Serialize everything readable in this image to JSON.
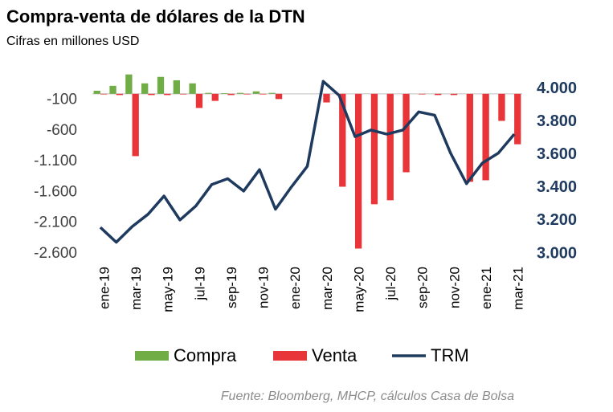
{
  "chart_data": {
    "type": "bar_line",
    "title": "Compra-venta de dólares de la DTN",
    "subtitle": "Cifras en millones USD",
    "source": "Fuente: Bloomberg, MHCP, cálculos Casa de Bolsa",
    "categories": [
      "ene-19",
      null,
      "mar-19",
      null,
      "may-19",
      null,
      "jul-19",
      null,
      "sep-19",
      null,
      "nov-19",
      null,
      "ene-20",
      null,
      "mar-20",
      null,
      "may-20",
      null,
      "jul-20",
      null,
      "sep-20",
      null,
      "nov-20",
      null,
      "ene-21",
      null,
      "mar-21"
    ],
    "series": [
      {
        "name": "Compra",
        "type": "bar",
        "color": "#70ad47",
        "values": [
          50,
          130,
          315,
          170,
          275,
          220,
          170,
          15,
          10,
          15,
          40,
          15,
          0,
          0,
          0,
          0,
          0,
          0,
          0,
          0,
          0,
          0,
          0,
          0,
          0,
          0,
          0
        ]
      },
      {
        "name": "Venta",
        "type": "bar",
        "color": "#e8353a",
        "values": [
          -10,
          -20,
          -1013,
          -20,
          -20,
          -10,
          -230,
          -115,
          -20,
          -10,
          -10,
          -85,
          0,
          0,
          -140,
          -1510,
          -2515,
          -1795,
          -1730,
          -1275,
          -10,
          -20,
          -20,
          -1430,
          -1405,
          -440,
          -820
        ]
      },
      {
        "name": "TRM",
        "type": "line",
        "axis": "y2",
        "color": "#1f3a5f",
        "values": [
          3160,
          3070,
          3165,
          3240,
          3350,
          3205,
          3290,
          3420,
          3455,
          3380,
          3510,
          3270,
          3405,
          3530,
          4045,
          3960,
          3710,
          3750,
          3725,
          3750,
          3860,
          3840,
          3610,
          3425,
          3550,
          3610,
          3725
        ]
      }
    ],
    "ylim": [
      -2600,
      350
    ],
    "yticks": [
      -100,
      -600,
      {
        "value": -1100,
        "label": "-1.100"
      },
      {
        "value": -1600,
        "label": "-1.600"
      },
      {
        "value": -2100,
        "label": "-2.100"
      },
      {
        "value": -2600,
        "label": "-2.600"
      }
    ],
    "y2lim": [
      3000,
      4100
    ],
    "y2ticks": [
      {
        "value": 4000,
        "label": "4.000"
      },
      {
        "value": 3800,
        "label": "3.800"
      },
      {
        "value": 3600,
        "label": "3.600"
      },
      {
        "value": 3400,
        "label": "3.400"
      },
      {
        "value": 3200,
        "label": "3.200"
      },
      {
        "value": 3000,
        "label": "3.000"
      }
    ],
    "legend": "bottom"
  }
}
